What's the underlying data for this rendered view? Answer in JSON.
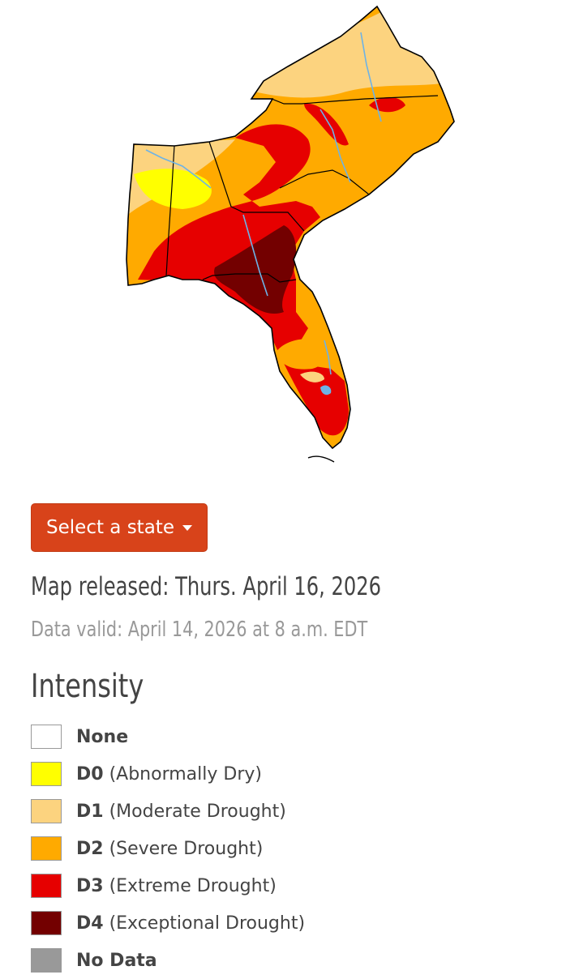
{
  "map": {
    "colors": {
      "none": "#ffffff",
      "d0": "#ffff00",
      "d1": "#fcd37f",
      "d2": "#ffaa00",
      "d3": "#e60000",
      "d4": "#730000",
      "water": "#6db3e6",
      "border": "#000000"
    }
  },
  "controls": {
    "select_state_label": "Select a state"
  },
  "info": {
    "released": "Map released: Thurs. April 16, 2026",
    "valid": "Data valid: April 14, 2026 at 8 a.m. EDT"
  },
  "legend": {
    "title": "Intensity",
    "items": [
      {
        "code": "None",
        "desc": "",
        "color": "#ffffff"
      },
      {
        "code": "D0",
        "desc": "(Abnormally Dry)",
        "color": "#ffff00"
      },
      {
        "code": "D1",
        "desc": "(Moderate Drought)",
        "color": "#fcd37f"
      },
      {
        "code": "D2",
        "desc": "(Severe Drought)",
        "color": "#ffaa00"
      },
      {
        "code": "D3",
        "desc": "(Extreme Drought)",
        "color": "#e60000"
      },
      {
        "code": "D4",
        "desc": "(Exceptional Drought)",
        "color": "#730000"
      },
      {
        "code": "No Data",
        "desc": "",
        "color": "#999999"
      }
    ]
  }
}
